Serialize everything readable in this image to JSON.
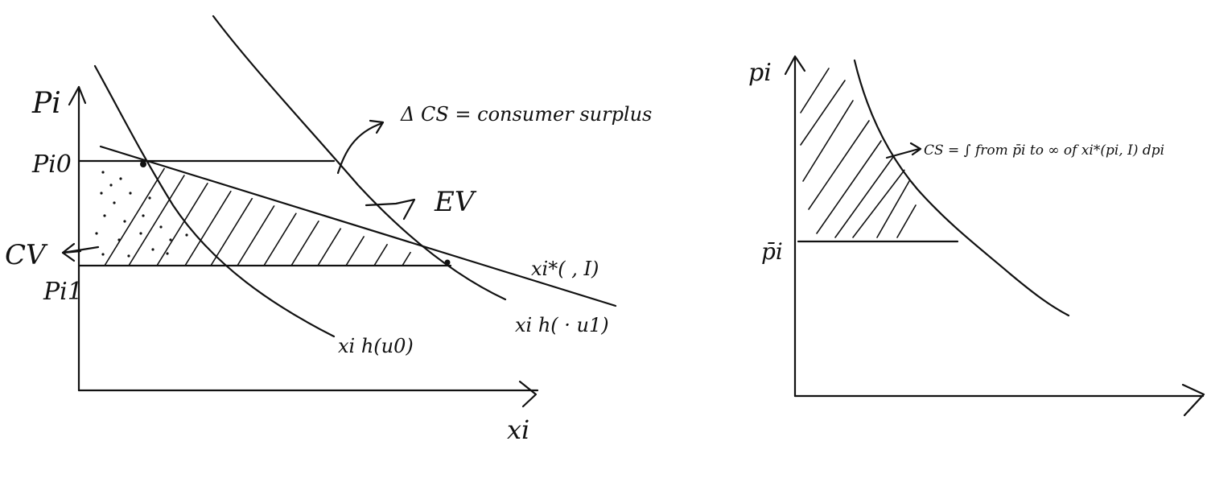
{
  "left_diagram": {
    "y_axis_label": "Pi",
    "x_axis_label": "xi",
    "price_initial_label": "Pi0",
    "price_new_label": "Pi1",
    "demand_marshallian_label": "xi*( , I)",
    "hicksian_u0_label": "xi h(u0)",
    "hicksian_u1_label": "xi h( · u1)",
    "delta_cs_annotation": "Δ CS = consumer surplus",
    "ev_label": "EV",
    "cv_label": "CV"
  },
  "right_diagram": {
    "y_axis_label": "pi",
    "price_label": "p̄i",
    "cs_formula": "CS = ∫ from p̄i to ∞ of xi*(pi, I) dpi"
  },
  "colors": {
    "ink": "#111111",
    "background": "#ffffff"
  }
}
